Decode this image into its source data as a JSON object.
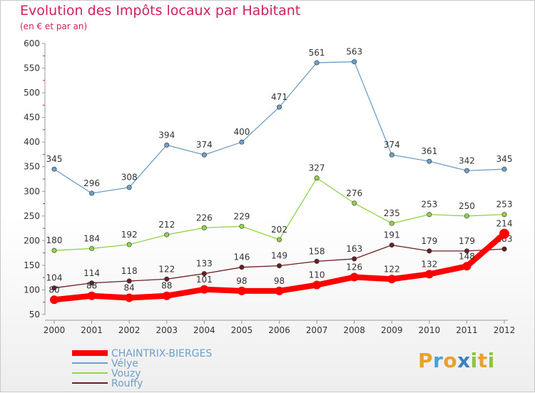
{
  "title": "Evolution des Impôts locaux par Habitant",
  "subtitle": "(en € et par an)",
  "logo_text": "Proxiti",
  "chart_data": {
    "type": "line",
    "title": "Evolution des Impôts locaux par Habitant",
    "subtitle": "(en € et par an)",
    "x": [
      "2000",
      "2001",
      "2002",
      "2003",
      "2004",
      "2005",
      "2006",
      "2007",
      "2008",
      "2009",
      "2010",
      "2011",
      "2012"
    ],
    "ylim": [
      50,
      600
    ],
    "yticks": [
      50,
      100,
      150,
      200,
      250,
      300,
      350,
      400,
      450,
      500,
      550,
      600
    ],
    "grid": false,
    "legend": "bottom-left",
    "series": [
      {
        "name": "CHAINTRIX-BIERGES",
        "color": "#ff0000",
        "values": [
          80,
          88,
          84,
          88,
          101,
          98,
          98,
          110,
          126,
          122,
          132,
          148,
          214
        ]
      },
      {
        "name": "Vélye",
        "color": "#6e9fc9",
        "values": [
          345,
          296,
          308,
          394,
          374,
          400,
          471,
          561,
          563,
          374,
          361,
          342,
          345
        ]
      },
      {
        "name": "Vouzy",
        "color": "#93d24a",
        "values": [
          180,
          184,
          192,
          212,
          226,
          229,
          202,
          327,
          276,
          235,
          253,
          250,
          253
        ]
      },
      {
        "name": "Rouffy",
        "color": "#6b1e24",
        "values": [
          104,
          114,
          118,
          122,
          133,
          146,
          149,
          158,
          163,
          191,
          179,
          179,
          183
        ]
      }
    ]
  }
}
